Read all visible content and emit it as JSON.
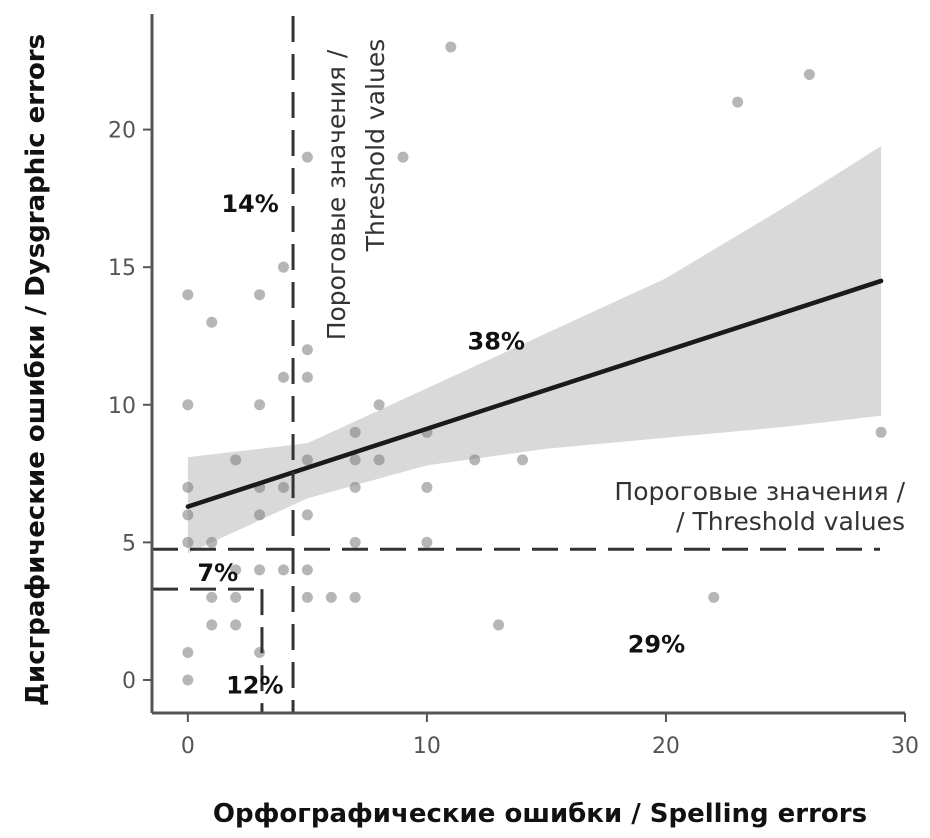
{
  "chart_data": {
    "type": "scatter",
    "title": "",
    "xlabel": "Орфографические ошибки / Spelling errors",
    "ylabel": "Дисграфические ошибки / Dysgraphic errors",
    "xlim": [
      -1.5,
      30
    ],
    "ylim": [
      -1.2,
      24.2
    ],
    "x_ticks": [
      "0",
      "10",
      "20",
      "30"
    ],
    "x_tick_values": [
      0,
      10,
      20,
      30
    ],
    "y_ticks": [
      "0",
      "5",
      "10",
      "15",
      "20"
    ],
    "y_tick_values": [
      0,
      5,
      10,
      15,
      20
    ],
    "grid": false,
    "points": [
      {
        "x": 0,
        "y": 14
      },
      {
        "x": 0,
        "y": 10
      },
      {
        "x": 0,
        "y": 7
      },
      {
        "x": 0,
        "y": 6
      },
      {
        "x": 0,
        "y": 5
      },
      {
        "x": 0,
        "y": 1
      },
      {
        "x": 0,
        "y": 0
      },
      {
        "x": 1,
        "y": 13
      },
      {
        "x": 1,
        "y": 5
      },
      {
        "x": 1,
        "y": 3
      },
      {
        "x": 1,
        "y": 2
      },
      {
        "x": 2,
        "y": 8
      },
      {
        "x": 2,
        "y": 4
      },
      {
        "x": 2,
        "y": 3
      },
      {
        "x": 2,
        "y": 2
      },
      {
        "x": 3,
        "y": 14
      },
      {
        "x": 3,
        "y": 10
      },
      {
        "x": 3,
        "y": 7
      },
      {
        "x": 3,
        "y": 6
      },
      {
        "x": 3,
        "y": 4
      },
      {
        "x": 3,
        "y": 1
      },
      {
        "x": 4,
        "y": 15
      },
      {
        "x": 4,
        "y": 11
      },
      {
        "x": 4,
        "y": 7
      },
      {
        "x": 4,
        "y": 4
      },
      {
        "x": 5,
        "y": 19
      },
      {
        "x": 5,
        "y": 12
      },
      {
        "x": 5,
        "y": 11
      },
      {
        "x": 5,
        "y": 8
      },
      {
        "x": 5,
        "y": 6
      },
      {
        "x": 5,
        "y": 4
      },
      {
        "x": 5,
        "y": 3
      },
      {
        "x": 6,
        "y": 3
      },
      {
        "x": 7,
        "y": 9
      },
      {
        "x": 7,
        "y": 8
      },
      {
        "x": 7,
        "y": 7
      },
      {
        "x": 7,
        "y": 5
      },
      {
        "x": 7,
        "y": 3
      },
      {
        "x": 8,
        "y": 10
      },
      {
        "x": 8,
        "y": 8
      },
      {
        "x": 9,
        "y": 19
      },
      {
        "x": 10,
        "y": 9
      },
      {
        "x": 10,
        "y": 7
      },
      {
        "x": 10,
        "y": 5
      },
      {
        "x": 11,
        "y": 23
      },
      {
        "x": 12,
        "y": 8
      },
      {
        "x": 13,
        "y": 2
      },
      {
        "x": 14,
        "y": 8
      },
      {
        "x": 22,
        "y": 3
      },
      {
        "x": 23,
        "y": 21
      },
      {
        "x": 26,
        "y": 22
      },
      {
        "x": 29,
        "y": 9
      }
    ],
    "regression_line": {
      "x": [
        0,
        29
      ],
      "y": [
        6.3,
        14.5
      ]
    },
    "confidence_band": {
      "x": [
        0,
        5,
        10,
        15,
        20,
        25,
        29
      ],
      "upper": [
        8.1,
        8.6,
        10.6,
        12.6,
        14.6,
        17.2,
        19.4
      ],
      "lower": [
        4.6,
        6.6,
        7.8,
        8.4,
        8.8,
        9.2,
        9.6
      ]
    },
    "thresholds": {
      "vertical_x": 4.4,
      "horizontal_y": 4.75,
      "inner_vertical_x": 3.1,
      "inner_horizontal_y": 3.3
    },
    "threshold_label_vertical": [
      "Пороговые значения /",
      "Threshold values"
    ],
    "threshold_label_horizontal": [
      "Пороговые значения /",
      "/ Threshold values"
    ],
    "quadrant_labels": [
      {
        "text": "14%",
        "x": 1.4,
        "y": 17
      },
      {
        "text": "38%",
        "x": 11.7,
        "y": 12
      },
      {
        "text": "7%",
        "x": 0.4,
        "y": 3.6
      },
      {
        "text": "29%",
        "x": 18.4,
        "y": 1
      },
      {
        "text": "12%",
        "x": 1.6,
        "y": -0.5
      }
    ]
  }
}
